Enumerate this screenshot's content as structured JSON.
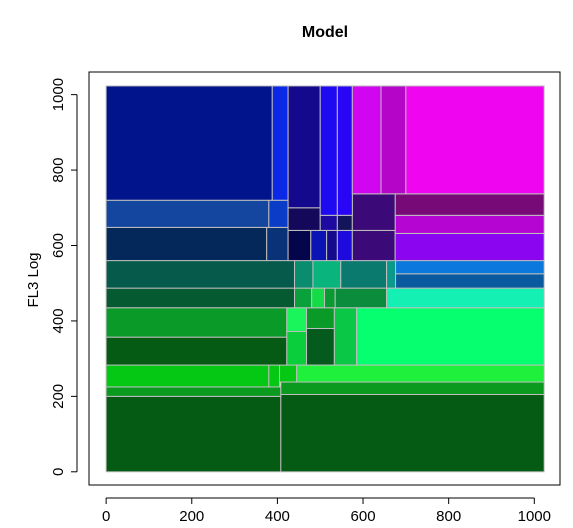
{
  "chart_data": {
    "type": "treemap",
    "title": "Model",
    "xlabel": "",
    "ylabel": "FL3 Log",
    "xlim": [
      -40,
      1060
    ],
    "ylim": [
      -35,
      1060
    ],
    "xticks": [
      0,
      200,
      400,
      600,
      800,
      1000
    ],
    "yticks": [
      0,
      200,
      400,
      600,
      800,
      1000
    ],
    "grid": false,
    "cell_border_color": "#bebebe",
    "cells": [
      {
        "x0": 0,
        "x1": 408,
        "y0": 0,
        "y1": 200,
        "color": "#055a14"
      },
      {
        "x0": 408,
        "x1": 1023,
        "y0": 0,
        "y1": 205,
        "color": "#055a14"
      },
      {
        "x0": 0,
        "x1": 408,
        "y0": 200,
        "y1": 225,
        "color": "#0a9a1e"
      },
      {
        "x0": 408,
        "x1": 1023,
        "y0": 205,
        "y1": 238,
        "color": "#0a9a1e"
      },
      {
        "x0": 0,
        "x1": 380,
        "y0": 225,
        "y1": 283,
        "color": "#05c814"
      },
      {
        "x0": 380,
        "x1": 405,
        "y0": 225,
        "y1": 283,
        "color": "#05c814"
      },
      {
        "x0": 405,
        "x1": 445,
        "y0": 238,
        "y1": 283,
        "color": "#05c814"
      },
      {
        "x0": 445,
        "x1": 1023,
        "y0": 238,
        "y1": 283,
        "color": "#1ef03c"
      },
      {
        "x0": 0,
        "x1": 422,
        "y0": 283,
        "y1": 357,
        "color": "#055a14"
      },
      {
        "x0": 0,
        "x1": 422,
        "y0": 357,
        "y1": 435,
        "color": "#0a9a28"
      },
      {
        "x0": 422,
        "x1": 468,
        "y0": 283,
        "y1": 372,
        "color": "#0ace3c"
      },
      {
        "x0": 422,
        "x1": 468,
        "y0": 372,
        "y1": 435,
        "color": "#19f55a"
      },
      {
        "x0": 468,
        "x1": 533,
        "y0": 283,
        "y1": 380,
        "color": "#055a1e"
      },
      {
        "x0": 468,
        "x1": 533,
        "y0": 380,
        "y1": 435,
        "color": "#0a9a28"
      },
      {
        "x0": 533,
        "x1": 585,
        "y0": 283,
        "y1": 435,
        "color": "#0ac846"
      },
      {
        "x0": 585,
        "x1": 1023,
        "y0": 283,
        "y1": 435,
        "color": "#05ff6e"
      },
      {
        "x0": 0,
        "x1": 440,
        "y0": 435,
        "y1": 487,
        "color": "#055a32"
      },
      {
        "x0": 440,
        "x1": 480,
        "y0": 435,
        "y1": 487,
        "color": "#0aa03c"
      },
      {
        "x0": 480,
        "x1": 510,
        "y0": 435,
        "y1": 487,
        "color": "#14dc46"
      },
      {
        "x0": 510,
        "x1": 535,
        "y0": 435,
        "y1": 487,
        "color": "#0a9a32"
      },
      {
        "x0": 535,
        "x1": 655,
        "y0": 435,
        "y1": 487,
        "color": "#0a8c3c"
      },
      {
        "x0": 655,
        "x1": 1023,
        "y0": 435,
        "y1": 487,
        "color": "#14f0b4"
      },
      {
        "x0": 0,
        "x1": 440,
        "y0": 487,
        "y1": 560,
        "color": "#055a4b"
      },
      {
        "x0": 440,
        "x1": 483,
        "y0": 487,
        "y1": 560,
        "color": "#0a8c6e"
      },
      {
        "x0": 483,
        "x1": 548,
        "y0": 487,
        "y1": 560,
        "color": "#0ab47d"
      },
      {
        "x0": 548,
        "x1": 655,
        "y0": 487,
        "y1": 560,
        "color": "#0a7a6e"
      },
      {
        "x0": 655,
        "x1": 676,
        "y0": 487,
        "y1": 560,
        "color": "#0a9a8c"
      },
      {
        "x0": 676,
        "x1": 1023,
        "y0": 487,
        "y1": 525,
        "color": "#0a5aa0"
      },
      {
        "x0": 676,
        "x1": 1023,
        "y0": 525,
        "y1": 560,
        "color": "#0a78dc"
      },
      {
        "x0": 0,
        "x1": 375,
        "y0": 560,
        "y1": 648,
        "color": "#05285a"
      },
      {
        "x0": 375,
        "x1": 425,
        "y0": 560,
        "y1": 648,
        "color": "#0a3278"
      },
      {
        "x0": 425,
        "x1": 478,
        "y0": 560,
        "y1": 640,
        "color": "#05054b"
      },
      {
        "x0": 478,
        "x1": 515,
        "y0": 560,
        "y1": 640,
        "color": "#0a14b4"
      },
      {
        "x0": 515,
        "x1": 540,
        "y0": 560,
        "y1": 640,
        "color": "#140a8c"
      },
      {
        "x0": 540,
        "x1": 575,
        "y0": 560,
        "y1": 640,
        "color": "#1e0adc"
      },
      {
        "x0": 575,
        "x1": 675,
        "y0": 560,
        "y1": 640,
        "color": "#3c0a78"
      },
      {
        "x0": 675,
        "x1": 1023,
        "y0": 560,
        "y1": 632,
        "color": "#8c05f0"
      },
      {
        "x0": 675,
        "x1": 1023,
        "y0": 632,
        "y1": 680,
        "color": "#b405d2"
      },
      {
        "x0": 675,
        "x1": 1023,
        "y0": 680,
        "y1": 737,
        "color": "#780a78"
      },
      {
        "x0": 0,
        "x1": 380,
        "y0": 648,
        "y1": 720,
        "color": "#1446a0"
      },
      {
        "x0": 380,
        "x1": 425,
        "y0": 648,
        "y1": 720,
        "color": "#0a3cc8"
      },
      {
        "x0": 425,
        "x1": 500,
        "y0": 640,
        "y1": 700,
        "color": "#14085a"
      },
      {
        "x0": 500,
        "x1": 540,
        "y0": 640,
        "y1": 680,
        "color": "#1e0aa0"
      },
      {
        "x0": 540,
        "x1": 575,
        "y0": 640,
        "y1": 680,
        "color": "#14145a"
      },
      {
        "x0": 575,
        "x1": 675,
        "y0": 640,
        "y1": 737,
        "color": "#3c0a78"
      },
      {
        "x0": 0,
        "x1": 388,
        "y0": 720,
        "y1": 1023,
        "color": "#01148c"
      },
      {
        "x0": 388,
        "x1": 425,
        "y0": 720,
        "y1": 1023,
        "color": "#0a28e6"
      },
      {
        "x0": 425,
        "x1": 500,
        "y0": 700,
        "y1": 1023,
        "color": "#14088c"
      },
      {
        "x0": 500,
        "x1": 540,
        "y0": 680,
        "y1": 1023,
        "color": "#1e0af0"
      },
      {
        "x0": 540,
        "x1": 575,
        "y0": 680,
        "y1": 1023,
        "color": "#2805f5"
      },
      {
        "x0": 575,
        "x1": 642,
        "y0": 737,
        "y1": 1023,
        "color": "#d205f0"
      },
      {
        "x0": 642,
        "x1": 700,
        "y0": 737,
        "y1": 1023,
        "color": "#b405c8"
      },
      {
        "x0": 700,
        "x1": 1023,
        "y0": 737,
        "y1": 1023,
        "color": "#f005f0"
      }
    ]
  }
}
